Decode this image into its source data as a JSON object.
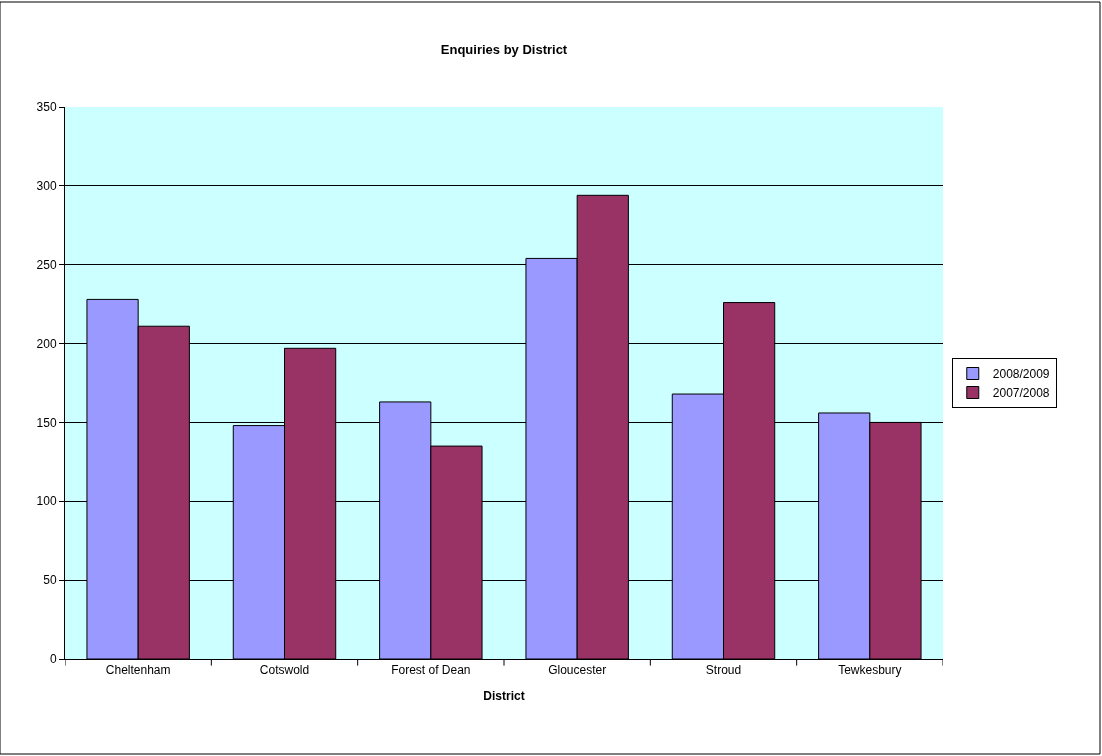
{
  "chart_data": {
    "type": "bar",
    "title": "Enquiries by District",
    "xlabel": "District",
    "categories": [
      "Cheltenham",
      "Cotswold",
      "Forest of Dean",
      "Gloucester",
      "Stroud",
      "Tewkesbury"
    ],
    "series": [
      {
        "name": "2008/2009",
        "color": "#9999ff",
        "values": [
          228,
          148,
          163,
          254,
          168,
          156
        ]
      },
      {
        "name": "2007/2008",
        "color": "#993366",
        "values": [
          211,
          197,
          135,
          294,
          226,
          150
        ]
      }
    ],
    "ylim": [
      0,
      350
    ],
    "yticks": [
      0,
      50,
      100,
      150,
      200,
      250,
      300,
      350
    ],
    "grid": "y",
    "legend": "right"
  }
}
